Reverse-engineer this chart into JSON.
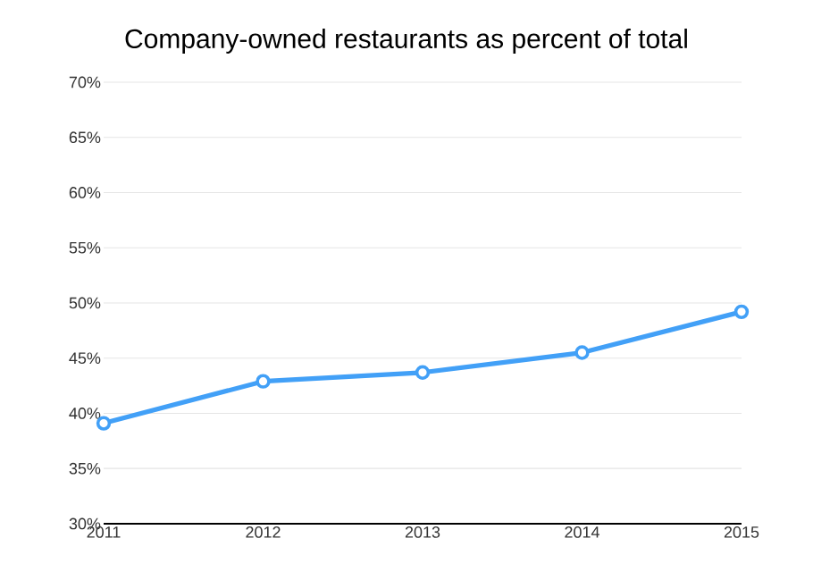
{
  "chart_data": {
    "type": "line",
    "title": "Company-owned restaurants as percent of total",
    "categories": [
      "2011",
      "2012",
      "2013",
      "2014",
      "2015"
    ],
    "series": [
      {
        "color": "#42a0f7",
        "values": [
          39.1,
          42.9,
          43.7,
          45.5,
          49.2
        ]
      }
    ],
    "ylim": [
      30,
      70
    ],
    "yticks": [
      {
        "value": 30,
        "label": "30%"
      },
      {
        "value": 35,
        "label": "35%"
      },
      {
        "value": 40,
        "label": "40%"
      },
      {
        "value": 45,
        "label": "45%"
      },
      {
        "value": 50,
        "label": "50%"
      },
      {
        "value": 55,
        "label": "55%"
      },
      {
        "value": 60,
        "label": "60%"
      },
      {
        "value": 65,
        "label": "65%"
      },
      {
        "value": 70,
        "label": "70%"
      }
    ],
    "grid": "y",
    "marker": "circle",
    "line_style": "solid"
  }
}
